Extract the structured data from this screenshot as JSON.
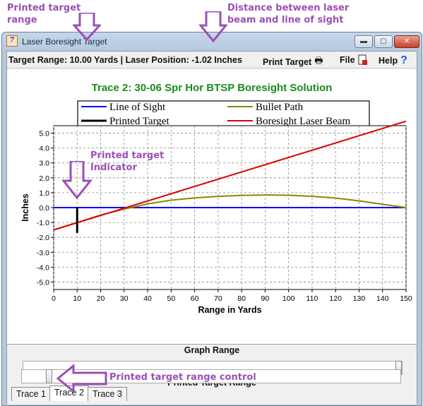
{
  "annotations": {
    "printed_target_range": [
      "Printed target",
      "range"
    ],
    "distance_label": [
      "Distance between laser",
      "beam and line of sight"
    ],
    "printed_target_indicator": [
      "Printed target",
      "Indicator"
    ],
    "printed_target_range_control": "Printed target range control",
    "color": "#9b4fb5"
  },
  "window": {
    "title": "Laser Boresight Target",
    "minimize_icon": "minimize-icon",
    "maximize_icon": "maximize-icon",
    "close_icon": "close-icon"
  },
  "status": {
    "text": "Target Range: 10.00 Yards | Laser Position: -1.02 Inches"
  },
  "menu": {
    "print_target": "Print Target",
    "file": "File",
    "help": "Help",
    "print_icon": "printer-icon",
    "file_icon": "file-icon",
    "help_icon": "help-icon"
  },
  "chart_data": {
    "type": "line",
    "title": "Trace 2: 30-06 Spr Hor BTSP Boresight Solution",
    "title_color": "#1a8c1a",
    "xlabel": "Range in Yards",
    "ylabel": "Inches",
    "xlim": [
      0,
      150
    ],
    "ylim": [
      -5.5,
      5.5
    ],
    "xticks": [
      0,
      10,
      20,
      30,
      40,
      50,
      60,
      70,
      80,
      90,
      100,
      110,
      120,
      130,
      140,
      150
    ],
    "yticks": [
      5.0,
      4.0,
      3.0,
      2.0,
      1.0,
      0.0,
      -1.0,
      -2.0,
      -3.0,
      -4.0,
      -5.0
    ],
    "grid": true,
    "legend_position": "top",
    "series": [
      {
        "name": "Line of Sight",
        "color": "#0000ff",
        "x": [
          0,
          150
        ],
        "y": [
          0,
          0
        ]
      },
      {
        "name": "Bullet Path",
        "color": "#8a8a00",
        "x": [
          0,
          10,
          20,
          30,
          40,
          50,
          60,
          70,
          80,
          90,
          100,
          110,
          120,
          130,
          140,
          150
        ],
        "y": [
          -1.5,
          -1.0,
          -0.5,
          -0.1,
          0.25,
          0.5,
          0.65,
          0.75,
          0.82,
          0.85,
          0.83,
          0.76,
          0.64,
          0.45,
          0.22,
          0.0
        ]
      },
      {
        "name": "Printed Target",
        "color": "#000000",
        "x": [
          10,
          10
        ],
        "y": [
          -1.7,
          0.0
        ]
      },
      {
        "name": "Boresight Laser Beam",
        "color": "#dd0000",
        "x": [
          0,
          150
        ],
        "y": [
          -1.5,
          5.8
        ]
      }
    ]
  },
  "graph_range": {
    "label": "Graph Range",
    "value": 1.0
  },
  "printed_target_range": {
    "label": "Printed Target Range",
    "value": 0.065
  },
  "tabs": [
    "Trace 1",
    "Trace 2",
    "Trace 3"
  ],
  "active_tab": 1
}
